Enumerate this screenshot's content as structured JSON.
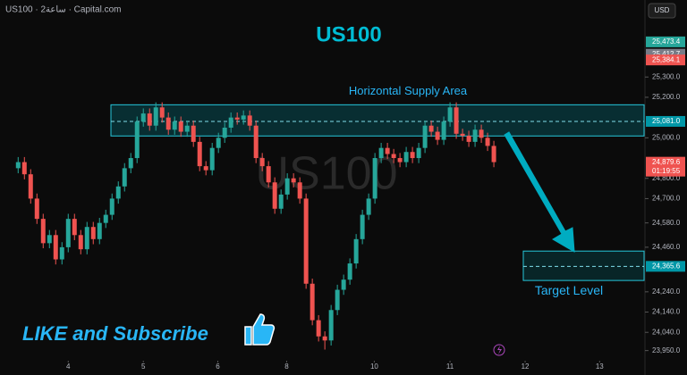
{
  "header": "US100 · 2ساعة · Capital.com",
  "currency": "USD",
  "chart_data": {
    "type": "candlestick",
    "title": "US100",
    "watermark": "US100",
    "up_color": "#26a69a",
    "down_color": "#ef5350",
    "xlim": [
      -2.9,
      100
    ],
    "ylim": [
      23900,
      25680
    ],
    "xticks": [
      {
        "value": 8,
        "label": "4"
      },
      {
        "value": 20,
        "label": "5"
      },
      {
        "value": 31.9,
        "label": "6"
      },
      {
        "value": 42.9,
        "label": "8"
      },
      {
        "value": 56.9,
        "label": "10"
      },
      {
        "value": 69,
        "label": "11"
      },
      {
        "value": 81,
        "label": "12"
      },
      {
        "value": 92.9,
        "label": "13"
      }
    ],
    "yticks": [
      {
        "value": 25300,
        "label": "25,300.0"
      },
      {
        "value": 25200,
        "label": "25,200.0"
      },
      {
        "value": 25000,
        "label": "25,000.0"
      },
      {
        "value": 24800,
        "label": "24,800.0"
      },
      {
        "value": 24700,
        "label": "24,700.0"
      },
      {
        "value": 24580,
        "label": "24,580.0"
      },
      {
        "value": 24460,
        "label": "24,460.0"
      },
      {
        "value": 24240,
        "label": "24,240.0"
      },
      {
        "value": 24140,
        "label": "24,140.0"
      },
      {
        "value": 24040,
        "label": "24,040.0"
      },
      {
        "value": 23950,
        "label": "23,950.0"
      }
    ],
    "open": [
      24850,
      24880,
      24820,
      24700,
      24600,
      24480,
      24520,
      24400,
      24460,
      24600,
      24520,
      24450,
      24560,
      24500,
      24580,
      24620,
      24700,
      24760,
      24850,
      24900,
      25080,
      25120,
      25060,
      25150,
      25100,
      25040,
      25080,
      25030,
      25060,
      24980,
      24860,
      24840,
      24950,
      25000,
      25050,
      25100,
      25090,
      25110,
      25060,
      24900,
      24860,
      24780,
      24650,
      24720,
      24800,
      24780,
      24700,
      24280,
      24100,
      24020,
      24000,
      24150,
      24250,
      24300,
      24380,
      24500,
      24620,
      24700,
      24900,
      24950,
      24920,
      24900,
      24880,
      24930,
      24900,
      24950,
      25060,
      25030,
      24990,
      25080,
      25150,
      25020,
      25010,
      24980,
      25040,
      25000,
      24960
    ],
    "high": [
      24905,
      24905,
      24845,
      24725,
      24625,
      24545,
      24545,
      24485,
      24625,
      24625,
      24545,
      24585,
      24585,
      24605,
      24645,
      24725,
      24785,
      24875,
      24925,
      25105,
      25145,
      25145,
      25175,
      25175,
      25125,
      25105,
      25105,
      25085,
      25085,
      25005,
      24885,
      24975,
      25025,
      25075,
      25125,
      25125,
      25135,
      25135,
      25085,
      24925,
      24885,
      24805,
      24745,
      24825,
      24825,
      24805,
      24725,
      24305,
      24125,
      24045,
      24175,
      24275,
      24325,
      24405,
      24525,
      24645,
      24725,
      24925,
      24975,
      24975,
      24945,
      24925,
      24955,
      24955,
      24975,
      25085,
      25085,
      25055,
      25105,
      25175,
      25175,
      25045,
      25035,
      25065,
      25065,
      25025,
      24985
    ],
    "low": [
      24825,
      24795,
      24675,
      24575,
      24455,
      24455,
      24375,
      24375,
      24435,
      24495,
      24425,
      24425,
      24475,
      24475,
      24555,
      24595,
      24675,
      24735,
      24825,
      24875,
      25055,
      25035,
      25035,
      25075,
      25015,
      25015,
      25005,
      25005,
      24955,
      24835,
      24815,
      24815,
      24925,
      24975,
      25025,
      25065,
      25065,
      25035,
      24875,
      24835,
      24755,
      24625,
      24625,
      24695,
      24755,
      24675,
      24255,
      24075,
      23995,
      23955,
      23975,
      24125,
      24225,
      24275,
      24355,
      24475,
      24595,
      24675,
      24875,
      24895,
      24875,
      24855,
      24855,
      24875,
      24875,
      24925,
      25005,
      24965,
      24965,
      25055,
      24995,
      24985,
      24955,
      24955,
      24975,
      24935,
      24855
    ],
    "close": [
      24880,
      24820,
      24700,
      24600,
      24480,
      24520,
      24400,
      24460,
      24600,
      24520,
      24450,
      24560,
      24500,
      24580,
      24620,
      24700,
      24760,
      24850,
      24900,
      25080,
      25120,
      25060,
      25150,
      25100,
      25040,
      25080,
      25030,
      25060,
      24980,
      24860,
      24840,
      24950,
      25000,
      25050,
      25100,
      25090,
      25110,
      25060,
      24900,
      24860,
      24780,
      24650,
      24720,
      24800,
      24780,
      24700,
      24280,
      24100,
      24020,
      24000,
      24150,
      24250,
      24300,
      24380,
      24500,
      24620,
      24700,
      24900,
      24950,
      24920,
      24900,
      24880,
      24930,
      24900,
      24950,
      25060,
      25030,
      24990,
      25080,
      25150,
      25020,
      25010,
      24980,
      25040,
      25000,
      24960,
      24880
    ],
    "supply_zone": {
      "label": "Horizontal Supply Area",
      "range": [
        25009,
        25163
      ],
      "level": 25081.0
    },
    "target_zone": {
      "label": "Target Level",
      "range": [
        24296,
        24441
      ],
      "level": 24365.6
    },
    "price_labels": [
      {
        "value": 25473.4,
        "label": "25,473.4",
        "color": "#26a69a"
      },
      {
        "value": 25412.7,
        "label": "25,412.7",
        "color": "#787b86"
      },
      {
        "value": 25384.1,
        "label": "25,384.1",
        "color": "#ef5350"
      },
      {
        "value": 25081.0,
        "label": "25,081.0",
        "color": "#0097a7"
      },
      {
        "value": 24879.6,
        "label": "24,879.6",
        "color": "#ef5350",
        "countdown": "01:19:55"
      },
      {
        "value": 24365.6,
        "label": "24,365.6",
        "color": "#0097a7"
      }
    ],
    "promo": "LIKE and Subscribe"
  }
}
